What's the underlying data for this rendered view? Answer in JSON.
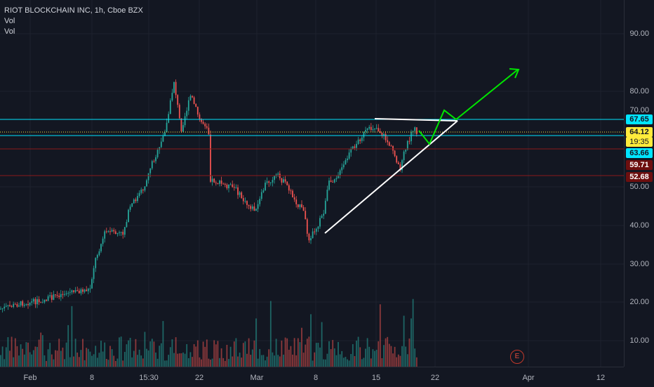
{
  "legend": {
    "title": "RIOT BLOCKCHAIN INC, 1h, Cboe BZX",
    "line2": "Vol",
    "line3": "Vol"
  },
  "price_axis": {
    "ticks": [
      "90.00",
      "80.00",
      "70.00",
      "50.00",
      "40.00",
      "30.00",
      "20.00",
      "10.00"
    ]
  },
  "time_axis": {
    "ticks": [
      "Feb",
      "8",
      "15:30",
      "22",
      "Mar",
      "8",
      "15",
      "22",
      "Apr",
      "12"
    ]
  },
  "badges": {
    "resistance": "67.65",
    "last_price": "64.12",
    "countdown": "19:35",
    "support": "63.66",
    "level2": "59.71",
    "level3": "52.68"
  },
  "earnings_marker": "E",
  "colors": {
    "background": "#131722",
    "up": "#26a69a",
    "down": "#ef5350",
    "cyan_line": "#00e5ff",
    "red_line": "#8b1a1a",
    "white_line": "#ffffff",
    "green_arrow": "#00e600",
    "last_price": "#ffeb3b"
  }
}
